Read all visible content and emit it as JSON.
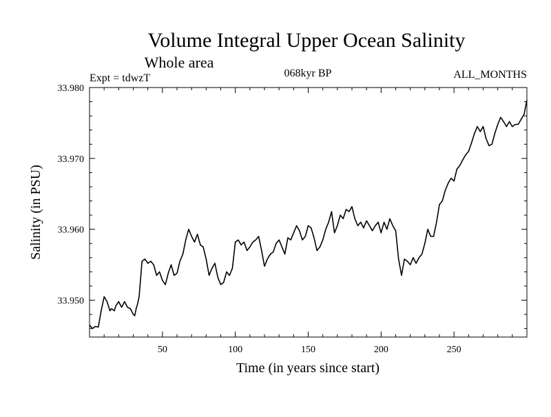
{
  "chart_data": {
    "type": "line",
    "title": "Volume Integral Upper Ocean Salinity",
    "subtitle": "Whole area",
    "expt_label": "Expt = tdwzT",
    "period_label": "068kyr BP",
    "months_label": "ALL_MONTHS",
    "xlabel": "Time (in years since start)",
    "ylabel": "Salinity (in PSU)",
    "xlim": [
      0,
      300
    ],
    "ylim": [
      33.9448,
      33.98
    ],
    "x_ticks": [
      50,
      100,
      150,
      200,
      250
    ],
    "x_tick_labels": [
      "50",
      "100",
      "150",
      "200",
      "250"
    ],
    "y_ticks": [
      33.95,
      33.96,
      33.97,
      33.98
    ],
    "y_tick_labels": [
      "33.950",
      "33.960",
      "33.970",
      "33.980"
    ],
    "grid": false,
    "series": [
      {
        "color": "#000000",
        "x": [
          0,
          2,
          4,
          6,
          8,
          9,
          10,
          12,
          14,
          15,
          17,
          18,
          20,
          22,
          24,
          26,
          28,
          30,
          31,
          32,
          33,
          34,
          36,
          38,
          40,
          42,
          44,
          46,
          48,
          50,
          52,
          54,
          56,
          58,
          60,
          62,
          64,
          66,
          68,
          70,
          72,
          74,
          76,
          78,
          80,
          82,
          84,
          86,
          88,
          90,
          92,
          94,
          96,
          98,
          100,
          102,
          104,
          106,
          108,
          110,
          112,
          114,
          116,
          118,
          120,
          122,
          124,
          126,
          128,
          130,
          132,
          134,
          136,
          138,
          140,
          142,
          144,
          146,
          148,
          150,
          152,
          154,
          156,
          158,
          160,
          162,
          164,
          166,
          168,
          170,
          172,
          174,
          176,
          178,
          180,
          182,
          184,
          186,
          188,
          190,
          192,
          194,
          196,
          198,
          200,
          202,
          204,
          206,
          208,
          210,
          212,
          214,
          216,
          218,
          220,
          222,
          224,
          226,
          228,
          230,
          232,
          234,
          236,
          238,
          240,
          242,
          244,
          246,
          248,
          250,
          252,
          254,
          256,
          258,
          260,
          262,
          264,
          266,
          268,
          270,
          272,
          274,
          276,
          278,
          280,
          282,
          284,
          286,
          288,
          290,
          292,
          294,
          296,
          298,
          300
        ],
        "values": [
          33.9465,
          33.946,
          33.9463,
          33.9462,
          33.9485,
          33.9495,
          33.9505,
          33.9498,
          33.9485,
          33.9488,
          33.9485,
          33.9492,
          33.9498,
          33.949,
          33.9498,
          33.949,
          33.9488,
          33.948,
          33.9478,
          33.9488,
          33.9495,
          33.9505,
          33.9555,
          33.9558,
          33.9552,
          33.9555,
          33.955,
          33.9535,
          33.954,
          33.9528,
          33.9522,
          33.9538,
          33.955,
          33.9535,
          33.9538,
          33.9555,
          33.9565,
          33.9585,
          33.96,
          33.959,
          33.9582,
          33.9593,
          33.9578,
          33.9575,
          33.9558,
          33.9535,
          33.9545,
          33.9552,
          33.9532,
          33.9522,
          33.9525,
          33.954,
          33.9535,
          33.9545,
          33.9582,
          33.9585,
          33.9578,
          33.9582,
          33.957,
          33.9575,
          33.9582,
          33.9585,
          33.959,
          33.957,
          33.9548,
          33.9558,
          33.9565,
          33.9568,
          33.958,
          33.9585,
          33.9575,
          33.9565,
          33.9588,
          33.9585,
          33.9595,
          33.9605,
          33.9598,
          33.9585,
          33.959,
          33.9605,
          33.9602,
          33.9588,
          33.957,
          33.9575,
          33.9585,
          33.96,
          33.961,
          33.9625,
          33.9595,
          33.9605,
          33.962,
          33.9615,
          33.9628,
          33.9625,
          33.9632,
          33.9615,
          33.9605,
          33.961,
          33.9602,
          33.9612,
          33.9605,
          33.9598,
          33.9605,
          33.961,
          33.9595,
          33.961,
          33.96,
          33.9615,
          33.9605,
          33.9598,
          33.9558,
          33.9535,
          33.9558,
          33.9555,
          33.955,
          33.956,
          33.9552,
          33.956,
          33.9565,
          33.958,
          33.96,
          33.959,
          33.959,
          33.961,
          33.9635,
          33.964,
          33.9655,
          33.9665,
          33.9672,
          33.9668,
          33.9685,
          33.969,
          33.9698,
          33.9705,
          33.971,
          33.9722,
          33.9735,
          33.9745,
          33.9738,
          33.9745,
          33.9728,
          33.9718,
          33.972,
          33.9735,
          33.9748,
          33.9758,
          33.9752,
          33.9745,
          33.9752,
          33.9745,
          33.9748,
          33.9748,
          33.9755,
          33.9762,
          33.9782
        ]
      }
    ]
  }
}
